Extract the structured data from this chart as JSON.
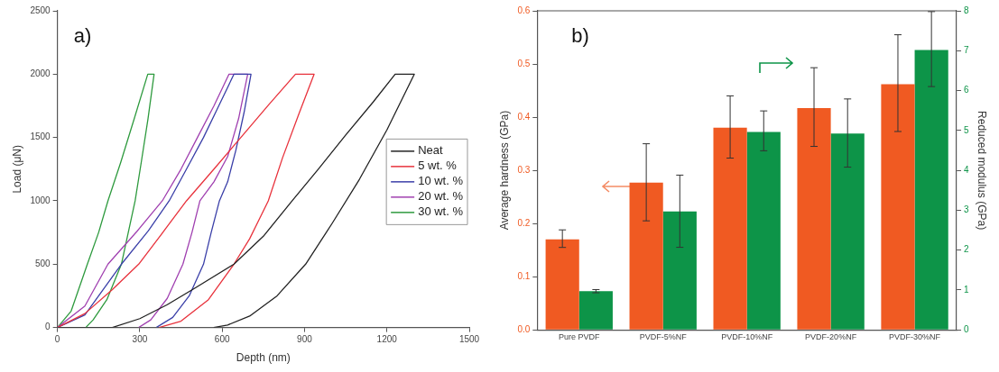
{
  "chart_data": [
    {
      "type": "line",
      "title": "a)",
      "xlabel": "Depth (nm)",
      "ylabel": "Load (μN)",
      "xlim": [
        0,
        1500
      ],
      "xticks": [
        0,
        300,
        600,
        900,
        1200,
        1500
      ],
      "ylim": [
        0,
        2500
      ],
      "yticks": [
        0,
        500,
        1000,
        1500,
        2000,
        2500
      ],
      "grid": false,
      "legend": "right",
      "marker": "none",
      "line_style": "solid",
      "series": [
        {
          "name": "Neat",
          "color": "#222222",
          "x": [
            0,
            200,
            300,
            400,
            500,
            643,
            750,
            855,
            950,
            1050,
            1150,
            1230,
            1300,
            1200,
            1100,
            1000,
            904,
            800,
            700,
            620,
            569
          ],
          "values": [
            0,
            0,
            70,
            180,
            310,
            500,
            720,
            1000,
            1250,
            1520,
            1780,
            2000,
            2000,
            1560,
            1170,
            820,
            500,
            250,
            90,
            20,
            0
          ]
        },
        {
          "name": "5 wt. %",
          "color": "#e8323c",
          "x": [
            0,
            100,
            200,
            296,
            380,
            470,
            570,
            668,
            770,
            867,
            935,
            880,
            820,
            768,
            700,
            643,
            550,
            450,
            370
          ],
          "values": [
            0,
            110,
            300,
            500,
            740,
            1000,
            1250,
            1500,
            1760,
            2000,
            2000,
            1690,
            1340,
            1000,
            700,
            500,
            220,
            50,
            0
          ]
        },
        {
          "name": "10 wt. %",
          "color": "#3a3fa8",
          "x": [
            0,
            100,
            233,
            330,
            407,
            470,
            532,
            590,
            643,
            705,
            680,
            650,
            620,
            590,
            560,
            532,
            480,
            420,
            360
          ],
          "values": [
            0,
            100,
            500,
            760,
            1000,
            1250,
            1500,
            1760,
            2000,
            2000,
            1700,
            1400,
            1150,
            1000,
            750,
            500,
            250,
            80,
            0
          ]
        },
        {
          "name": "20 wt. %",
          "color": "#a040b0",
          "x": [
            0,
            100,
            184,
            290,
            382,
            450,
            510,
            570,
            625,
            693,
            660,
            620,
            570,
            519,
            490,
            457,
            400,
            340,
            296
          ],
          "values": [
            0,
            170,
            500,
            760,
            1000,
            1250,
            1500,
            1750,
            2000,
            2000,
            1650,
            1350,
            1150,
            1000,
            750,
            500,
            230,
            60,
            0
          ]
        },
        {
          "name": "30 wt. %",
          "color": "#2e9a3e",
          "x": [
            0,
            50,
            109,
            150,
            184,
            230,
            280,
            329,
            352,
            330,
            305,
            283,
            258,
            233,
            180,
            130,
            103
          ],
          "values": [
            0,
            130,
            500,
            750,
            1000,
            1300,
            1650,
            2000,
            2000,
            1650,
            1300,
            1000,
            750,
            500,
            220,
            60,
            0
          ]
        }
      ]
    },
    {
      "type": "bar",
      "title": "b)",
      "ylabel": "Average hardness (GPa)",
      "y2label": "Reduced modulus (GPa)",
      "categories": [
        "Pure PVDF",
        "PVDF-5%NF",
        "PVDF-10%NF",
        "PVDF-20%NF",
        "PVDF-30%NF"
      ],
      "ylim": [
        0,
        0.6
      ],
      "yticks": [
        {
          "value": 0,
          "label": "0.0"
        },
        0.1,
        0.2,
        0.3,
        0.4,
        0.5,
        0.6
      ],
      "y2lim": [
        0,
        8
      ],
      "y2ticks": [
        0,
        1,
        2,
        3,
        4,
        5,
        6,
        7,
        8
      ],
      "grid": false,
      "series": [
        {
          "color": "#f05a22",
          "values": [
            0.17,
            0.277,
            0.38,
            0.417,
            0.462
          ],
          "errors": [
            [
              0.155,
              0.188
            ],
            [
              0.205,
              0.35
            ],
            [
              0.323,
              0.44
            ],
            [
              0.345,
              0.493
            ],
            [
              0.373,
              0.555
            ]
          ]
        },
        {
          "color": "#0d9448",
          "axis": "y2",
          "values": [
            0.97,
            2.97,
            4.96,
            4.92,
            7.02
          ],
          "errors": [
            [
              0.93,
              1.01
            ],
            [
              2.07,
              3.88
            ],
            [
              4.49,
              5.49
            ],
            [
              4.08,
              5.79
            ],
            [
              6.1,
              7.98
            ]
          ]
        }
      ]
    }
  ]
}
